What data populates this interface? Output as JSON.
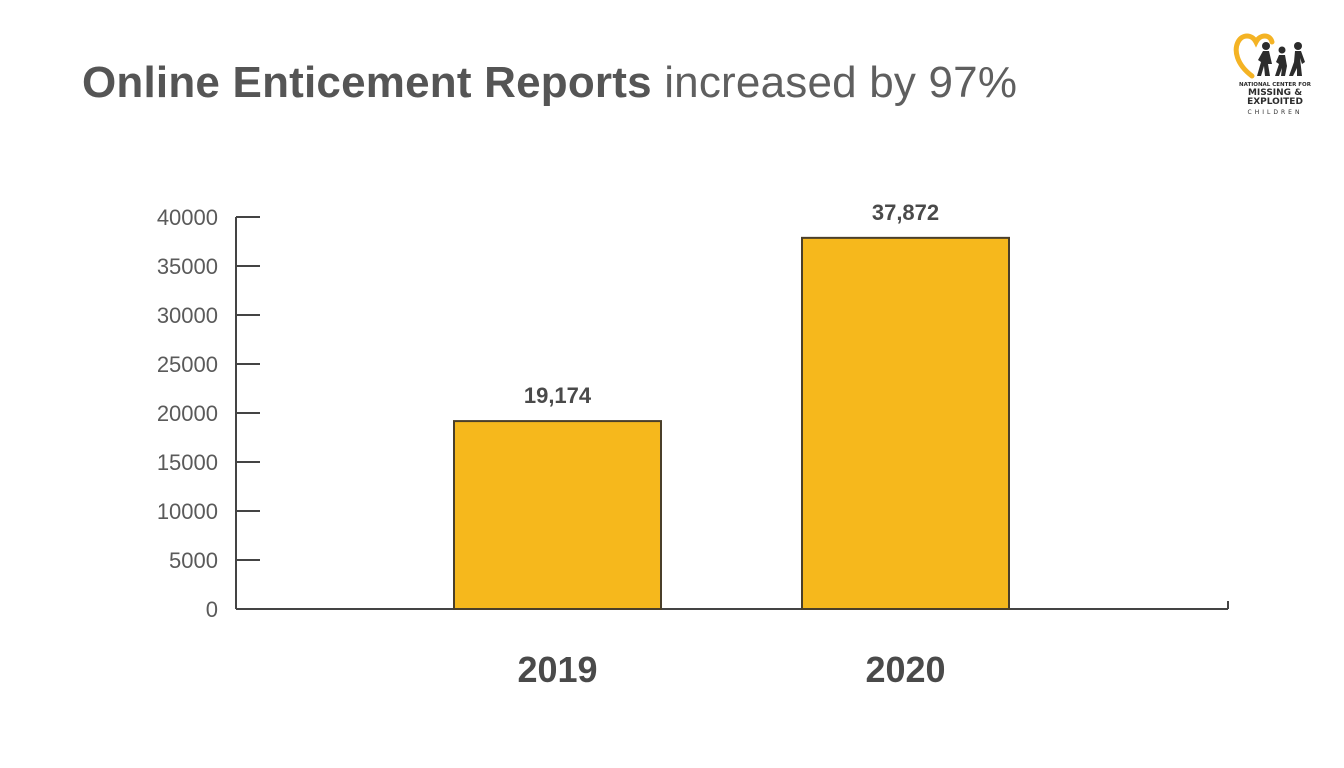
{
  "title": {
    "bold_part": "Online Enticement Reports",
    "light_part": "increased by 97%"
  },
  "logo": {
    "line1": "NATIONAL CENTER FOR",
    "line2a": "MISSING &",
    "line2b": "EXPLOITED",
    "line3": "CHILDREN",
    "accent_color": "#f4b324",
    "figure_color": "#2c2c2c"
  },
  "chart_data": {
    "type": "bar",
    "title": "Online Enticement Reports increased by 97%",
    "categories": [
      "2019",
      "2020"
    ],
    "values": [
      19174,
      37872
    ],
    "data_labels": [
      "19,174",
      "37,872"
    ],
    "xlabel": "",
    "ylabel": "",
    "ylim": [
      0,
      40000
    ],
    "yticks": [
      0,
      5000,
      10000,
      15000,
      20000,
      25000,
      30000,
      35000,
      40000
    ],
    "grid": false,
    "bar_color": "#f6b81c",
    "bar_edge_color": "#4a3f2a",
    "axis_color": "#444444"
  }
}
